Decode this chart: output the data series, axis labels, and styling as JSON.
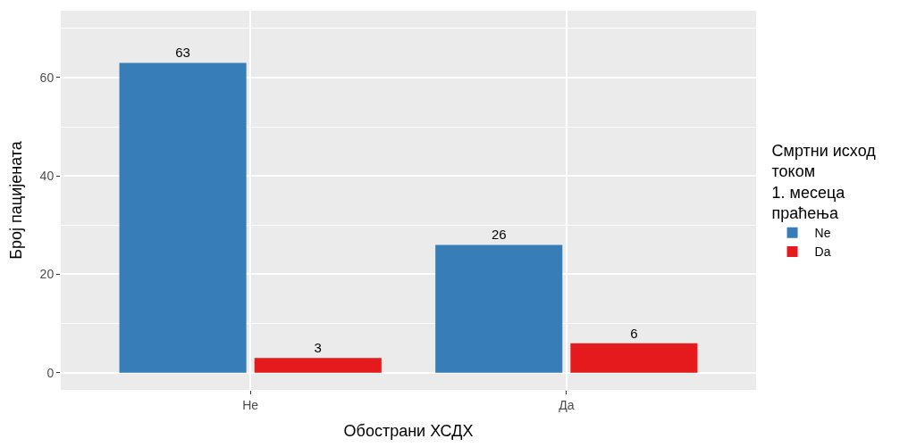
{
  "chart_data": {
    "type": "bar",
    "xlabel": "Обострани ХСДХ",
    "ylabel": "Број пацијената",
    "legend_title": "Смртни исход\nтоком\n1. месеца\nпраћења",
    "categories": [
      "Не",
      "Да"
    ],
    "series": [
      {
        "name": "Ne",
        "color": "#377eb8",
        "values": [
          63,
          26
        ]
      },
      {
        "name": "Da",
        "color": "#e41a1c",
        "values": [
          3,
          6
        ]
      }
    ],
    "ylim": [
      -3.5,
      73.6
    ],
    "yticks": [
      0,
      20,
      40,
      60
    ],
    "grid": true,
    "legend": "right",
    "data_labels": true
  }
}
